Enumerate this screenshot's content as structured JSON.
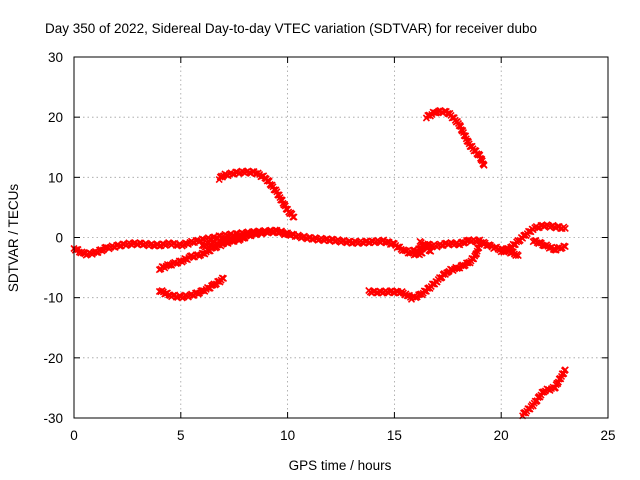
{
  "chart_data": {
    "type": "scatter",
    "title": "Day 350 of 2022, Sidereal Day-to-day VTEC variation (SDTVAR) for receiver dubo",
    "xlabel": "GPS time / hours",
    "ylabel": "SDTVAR / TECUs",
    "xlim": [
      0,
      25
    ],
    "ylim": [
      -30,
      30
    ],
    "xticks": [
      0,
      5,
      10,
      15,
      20,
      25
    ],
    "yticks": [
      -30,
      -20,
      -10,
      0,
      10,
      20,
      30
    ],
    "grid": true,
    "marker_color": "#ff0000",
    "series": [
      {
        "name": "arc-1",
        "points": [
          [
            0.0,
            -1.8
          ],
          [
            0.5,
            -2.8
          ],
          [
            1.0,
            -2.5
          ],
          [
            1.5,
            -1.8
          ],
          [
            2.0,
            -1.4
          ],
          [
            2.5,
            -1.1
          ],
          [
            3.0,
            -1.0
          ],
          [
            3.5,
            -1.2
          ],
          [
            4.0,
            -1.3
          ],
          [
            4.5,
            -1.0
          ],
          [
            5.0,
            -1.3
          ],
          [
            5.5,
            -0.8
          ],
          [
            6.0,
            -0.4
          ],
          [
            6.5,
            -0.1
          ],
          [
            7.0,
            0.3
          ],
          [
            7.5,
            0.5
          ],
          [
            8.0,
            0.7
          ],
          [
            8.5,
            0.9
          ],
          [
            9.0,
            1.0
          ],
          [
            9.5,
            1.1
          ],
          [
            10.0,
            0.6
          ],
          [
            10.5,
            0.2
          ],
          [
            11.0,
            -0.1
          ],
          [
            11.5,
            -0.3
          ],
          [
            12.0,
            -0.4
          ],
          [
            12.5,
            -0.6
          ],
          [
            13.0,
            -0.8
          ],
          [
            13.5,
            -0.8
          ],
          [
            14.0,
            -0.7
          ],
          [
            14.5,
            -0.6
          ],
          [
            15.0,
            -1.2
          ],
          [
            15.5,
            -2.3
          ],
          [
            16.0,
            -2.8
          ],
          [
            16.3,
            -2.6
          ]
        ]
      },
      {
        "name": "arc-2",
        "points": [
          [
            6.0,
            -1.5
          ],
          [
            6.5,
            -1.0
          ],
          [
            7.0,
            -0.6
          ],
          [
            7.5,
            -0.2
          ],
          [
            8.0,
            0.2
          ],
          [
            8.5,
            0.6
          ],
          [
            9.0,
            0.9
          ],
          [
            9.5,
            1.0
          ],
          [
            10.0,
            0.5
          ]
        ]
      },
      {
        "name": "arc-3",
        "points": [
          [
            4.0,
            -5.2
          ],
          [
            4.5,
            -4.5
          ],
          [
            5.0,
            -4.0
          ],
          [
            5.5,
            -3.2
          ],
          [
            6.0,
            -2.8
          ],
          [
            6.5,
            -1.8
          ],
          [
            7.0,
            -1.0
          ],
          [
            7.5,
            -0.5
          ],
          [
            8.0,
            -0.1
          ]
        ]
      },
      {
        "name": "arc-4",
        "points": [
          [
            4.0,
            -8.8
          ],
          [
            4.5,
            -9.6
          ],
          [
            5.0,
            -9.9
          ],
          [
            5.5,
            -9.6
          ],
          [
            6.0,
            -9.0
          ],
          [
            6.5,
            -8.0
          ],
          [
            7.0,
            -6.8
          ]
        ]
      },
      {
        "name": "arc-5",
        "points": [
          [
            6.8,
            9.8
          ],
          [
            7.0,
            10.3
          ],
          [
            7.5,
            10.7
          ],
          [
            8.0,
            10.9
          ],
          [
            8.5,
            10.8
          ],
          [
            9.0,
            9.8
          ],
          [
            9.5,
            7.5
          ],
          [
            10.0,
            4.5
          ],
          [
            10.3,
            3.4
          ]
        ]
      },
      {
        "name": "arc-6",
        "points": [
          [
            13.8,
            -9.0
          ],
          [
            14.3,
            -9.1
          ],
          [
            14.8,
            -9.0
          ],
          [
            15.3,
            -9.1
          ],
          [
            15.6,
            -9.5
          ],
          [
            15.8,
            -10.1
          ],
          [
            16.2,
            -9.6
          ],
          [
            16.5,
            -8.8
          ],
          [
            17.0,
            -7.2
          ],
          [
            17.5,
            -5.6
          ],
          [
            18.0,
            -5.0
          ],
          [
            18.5,
            -4.2
          ],
          [
            18.8,
            -3.0
          ],
          [
            19.0,
            -1.0
          ]
        ]
      },
      {
        "name": "arc-7",
        "points": [
          [
            15.8,
            -2.3
          ],
          [
            16.2,
            -2.0
          ],
          [
            16.5,
            -1.2
          ],
          [
            17.0,
            -1.4
          ],
          [
            17.5,
            -1.0
          ],
          [
            18.0,
            -1.1
          ],
          [
            18.5,
            -0.5
          ],
          [
            19.0,
            -0.6
          ],
          [
            19.5,
            -1.5
          ],
          [
            20.0,
            -2.0
          ],
          [
            20.5,
            -2.5
          ],
          [
            20.8,
            -3.0
          ]
        ]
      },
      {
        "name": "arc-8",
        "points": [
          [
            16.2,
            -0.8
          ],
          [
            16.5,
            -1.5
          ],
          [
            16.7,
            -2.3
          ]
        ]
      },
      {
        "name": "arc-9",
        "points": [
          [
            20.0,
            -2.5
          ],
          [
            20.5,
            -1.5
          ],
          [
            21.0,
            0.0
          ],
          [
            21.5,
            1.5
          ],
          [
            22.0,
            2.0
          ],
          [
            22.5,
            1.8
          ],
          [
            23.0,
            1.5
          ]
        ]
      },
      {
        "name": "arc-10",
        "points": [
          [
            21.5,
            -0.5
          ],
          [
            22.0,
            -1.2
          ],
          [
            22.5,
            -2.0
          ],
          [
            23.0,
            -1.5
          ]
        ]
      },
      {
        "name": "arc-11",
        "points": [
          [
            16.5,
            20.0
          ],
          [
            17.0,
            21.0
          ],
          [
            17.5,
            20.8
          ],
          [
            18.0,
            19.0
          ],
          [
            18.5,
            15.5
          ],
          [
            19.0,
            13.5
          ],
          [
            19.2,
            12.0
          ]
        ]
      },
      {
        "name": "arc-12",
        "points": [
          [
            21.0,
            -29.5
          ],
          [
            21.5,
            -27.8
          ],
          [
            22.0,
            -25.5
          ],
          [
            22.5,
            -25.0
          ],
          [
            23.0,
            -22.0
          ]
        ]
      }
    ]
  }
}
